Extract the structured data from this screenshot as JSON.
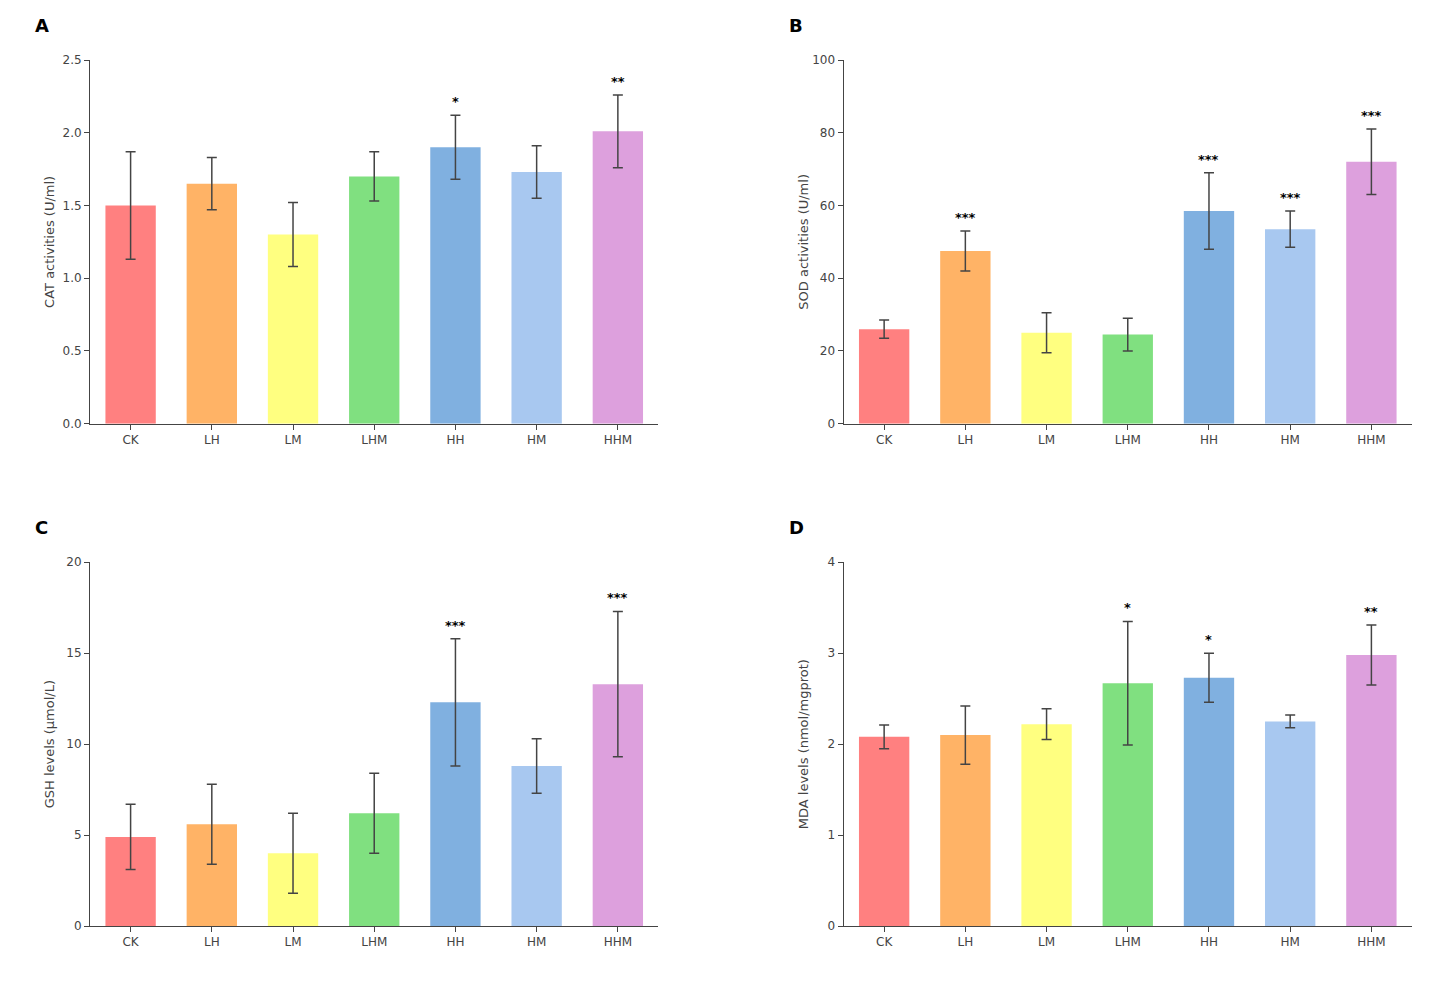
{
  "chart_data": [
    {
      "type": "bar",
      "title": "A",
      "categories": [
        "CK",
        "LH",
        "LM",
        "LHM",
        "HH",
        "HM",
        "HHM"
      ],
      "values": [
        1.5,
        1.65,
        1.3,
        1.7,
        1.9,
        1.73,
        2.01
      ],
      "errors": [
        0.37,
        0.18,
        0.22,
        0.17,
        0.22,
        0.18,
        0.25
      ],
      "colors": [
        "#FF8080",
        "#FFB366",
        "#FFFF80",
        "#80E080",
        "#80B0E0",
        "#A8C8F0",
        "#DDA0DD"
      ],
      "ylabel": "CAT activities (U/ml)",
      "ylim": [
        0,
        2.5
      ],
      "yticks": [
        {
          "value": 0,
          "label": "0.0"
        },
        0.5,
        {
          "value": 1,
          "label": "1.0"
        },
        1.5,
        {
          "value": 2,
          "label": "2.0"
        },
        2.5
      ],
      "annotations": [
        {
          "category": "HH",
          "text": "*"
        },
        {
          "category": "HHM",
          "text": "**"
        }
      ],
      "grid": false
    },
    {
      "type": "bar",
      "title": "B",
      "categories": [
        "CK",
        "LH",
        "LM",
        "LHM",
        "HH",
        "HM",
        "HHM"
      ],
      "values": [
        26.0,
        47.5,
        25.0,
        24.5,
        58.5,
        53.5,
        72.0
      ],
      "errors": [
        2.5,
        5.5,
        5.5,
        4.5,
        10.5,
        5.0,
        9.0
      ],
      "colors": [
        "#FF8080",
        "#FFB366",
        "#FFFF80",
        "#80E080",
        "#80B0E0",
        "#A8C8F0",
        "#DDA0DD"
      ],
      "ylabel": "SOD activities (U/ml)",
      "ylim": [
        0,
        100
      ],
      "yticks": [
        0,
        20,
        40,
        60,
        80,
        100
      ],
      "annotations": [
        {
          "category": "LH",
          "text": "***"
        },
        {
          "category": "HH",
          "text": "***"
        },
        {
          "category": "HM",
          "text": "***"
        },
        {
          "category": "HHM",
          "text": "***"
        }
      ],
      "grid": false
    },
    {
      "type": "bar",
      "title": "C",
      "categories": [
        "CK",
        "LH",
        "LM",
        "LHM",
        "HH",
        "HM",
        "HHM"
      ],
      "values": [
        4.9,
        5.6,
        4.0,
        6.2,
        12.3,
        8.8,
        13.3
      ],
      "errors": [
        1.8,
        2.2,
        2.2,
        2.2,
        3.5,
        1.5,
        4.0
      ],
      "colors": [
        "#FF8080",
        "#FFB366",
        "#FFFF80",
        "#80E080",
        "#80B0E0",
        "#A8C8F0",
        "#DDA0DD"
      ],
      "ylabel": "GSH levels (μmol/L)",
      "ylim": [
        0,
        20
      ],
      "yticks": [
        0,
        5,
        10,
        15,
        20
      ],
      "annotations": [
        {
          "category": "HH",
          "text": "***"
        },
        {
          "category": "HHM",
          "text": "***"
        }
      ],
      "grid": false
    },
    {
      "type": "bar",
      "title": "D",
      "categories": [
        "CK",
        "LH",
        "LM",
        "LHM",
        "HH",
        "HM",
        "HHM"
      ],
      "values": [
        2.08,
        2.1,
        2.22,
        2.67,
        2.73,
        2.25,
        2.98
      ],
      "errors": [
        0.13,
        0.32,
        0.17,
        0.68,
        0.27,
        0.07,
        0.33
      ],
      "colors": [
        "#FF8080",
        "#FFB366",
        "#FFFF80",
        "#80E080",
        "#80B0E0",
        "#A8C8F0",
        "#DDA0DD"
      ],
      "ylabel": "MDA levels (nmol/mgprot)",
      "ylim": [
        0,
        4
      ],
      "yticks": [
        0,
        1,
        2,
        3,
        4
      ],
      "annotations": [
        {
          "category": "LHM",
          "text": "*"
        },
        {
          "category": "HH",
          "text": "*"
        },
        {
          "category": "HHM",
          "text": "**"
        }
      ],
      "grid": false
    }
  ]
}
